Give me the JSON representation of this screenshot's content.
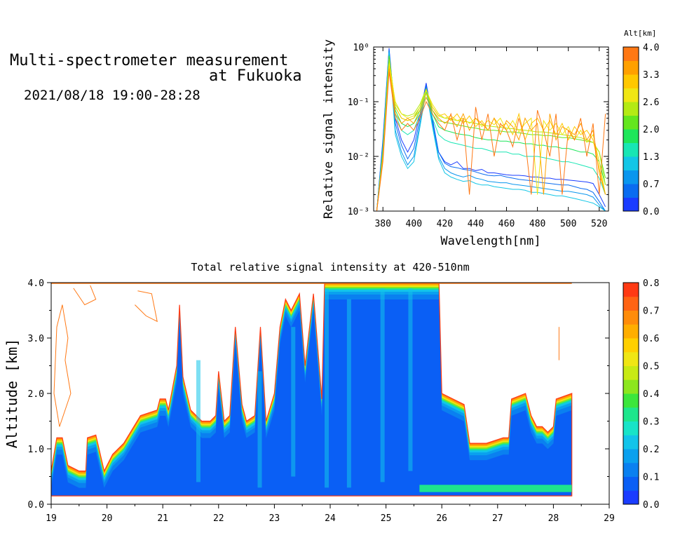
{
  "header": {
    "title_line1": "Multi-spectrometer measurement",
    "title_line2": "at Fukuoka",
    "datetime": "2021/08/18 19:00-28:28"
  },
  "chart_data": [
    {
      "type": "line",
      "title": "",
      "xlabel": "Wavelength[nm]",
      "ylabel": "Relative signal intensity",
      "yscale": "log",
      "xlim": [
        374,
        526
      ],
      "ylim": [
        0.001,
        1
      ],
      "xticks": [
        "380",
        "400",
        "420",
        "440",
        "460",
        "480",
        "500",
        "520"
      ],
      "yticks": [
        "10⁻³",
        "10⁻²",
        "10⁻¹",
        "10⁰"
      ],
      "colorbar": {
        "label": "Alt[km]",
        "ticks": [
          "0.0",
          "0.7",
          "1.3",
          "2.0",
          "2.6",
          "3.3",
          "4.0"
        ],
        "colors": [
          "#1a3cff",
          "#0a6cf0",
          "#0a96ee",
          "#12c6e6",
          "#18e6b4",
          "#1ee65a",
          "#64e61e",
          "#b4ea14",
          "#f0e614",
          "#ffc800",
          "#ffa000",
          "#ff7814"
        ]
      },
      "x": [
        376,
        380,
        384,
        388,
        392,
        396,
        400,
        404,
        408,
        412,
        416,
        420,
        424,
        428,
        432,
        436,
        440,
        444,
        448,
        452,
        456,
        460,
        464,
        468,
        472,
        476,
        480,
        484,
        488,
        492,
        496,
        500,
        504,
        508,
        512,
        516,
        520,
        524
      ],
      "series": [
        {
          "color": "#1a3cff",
          "values": [
            0.001,
            0.02,
            0.95,
            0.05,
            0.02,
            0.012,
            0.02,
            0.06,
            0.22,
            0.05,
            0.012,
            0.008,
            0.007,
            0.008,
            0.006,
            0.006,
            0.0055,
            0.0058,
            0.005,
            0.005,
            0.0048,
            0.0046,
            0.0045,
            0.0045,
            0.0044,
            0.0042,
            0.0042,
            0.004,
            0.004,
            0.0038,
            0.0038,
            0.0037,
            0.0036,
            0.0035,
            0.0034,
            0.0032,
            0.002,
            0.0012
          ]
        },
        {
          "color": "#0a6cf0",
          "values": [
            0.001,
            0.018,
            0.9,
            0.04,
            0.016,
            0.009,
            0.014,
            0.05,
            0.2,
            0.045,
            0.012,
            0.0075,
            0.0065,
            0.0062,
            0.0058,
            0.0056,
            0.0052,
            0.0048,
            0.0045,
            0.0044,
            0.0045,
            0.0042,
            0.004,
            0.0038,
            0.0037,
            0.0036,
            0.0034,
            0.0033,
            0.0032,
            0.0031,
            0.003,
            0.003,
            0.0028,
            0.0026,
            0.0025,
            0.0022,
            0.0015,
            0.001
          ]
        },
        {
          "color": "#0a96ee",
          "values": [
            0.001,
            0.015,
            0.85,
            0.03,
            0.012,
            0.007,
            0.01,
            0.04,
            0.18,
            0.04,
            0.01,
            0.006,
            0.005,
            0.0045,
            0.0042,
            0.0045,
            0.004,
            0.0038,
            0.0035,
            0.0034,
            0.0033,
            0.0033,
            0.0031,
            0.003,
            0.0029,
            0.0028,
            0.0027,
            0.0026,
            0.0025,
            0.0024,
            0.0023,
            0.0023,
            0.0022,
            0.0021,
            0.002,
            0.0018,
            0.0013,
            0.001
          ]
        },
        {
          "color": "#12c6e6",
          "values": [
            0.001,
            0.014,
            0.8,
            0.025,
            0.01,
            0.006,
            0.008,
            0.035,
            0.16,
            0.035,
            0.009,
            0.005,
            0.0042,
            0.0038,
            0.0035,
            0.0036,
            0.0032,
            0.003,
            0.003,
            0.0028,
            0.0027,
            0.0026,
            0.0025,
            0.0025,
            0.0024,
            0.0022,
            0.0022,
            0.0021,
            0.002,
            0.0019,
            0.0019,
            0.0018,
            0.0017,
            0.0016,
            0.0015,
            0.0014,
            0.0012,
            0.001
          ]
        },
        {
          "color": "#18e6b4",
          "values": [
            0.001,
            0.012,
            0.7,
            0.06,
            0.03,
            0.025,
            0.03,
            0.06,
            0.15,
            0.05,
            0.025,
            0.02,
            0.018,
            0.017,
            0.016,
            0.015,
            0.014,
            0.014,
            0.013,
            0.012,
            0.012,
            0.012,
            0.011,
            0.011,
            0.01,
            0.01,
            0.01,
            0.0095,
            0.009,
            0.0085,
            0.008,
            0.008,
            0.0075,
            0.007,
            0.0065,
            0.006,
            0.004,
            0.002
          ]
        },
        {
          "color": "#1ee65a",
          "values": [
            0.001,
            0.012,
            0.7,
            0.07,
            0.04,
            0.035,
            0.04,
            0.07,
            0.16,
            0.06,
            0.035,
            0.03,
            0.028,
            0.026,
            0.025,
            0.024,
            0.022,
            0.021,
            0.02,
            0.02,
            0.019,
            0.019,
            0.018,
            0.018,
            0.017,
            0.017,
            0.016,
            0.016,
            0.015,
            0.015,
            0.014,
            0.014,
            0.013,
            0.012,
            0.012,
            0.011,
            0.008,
            0.003
          ]
        },
        {
          "color": "#64e61e",
          "values": [
            0.001,
            0.012,
            0.68,
            0.08,
            0.05,
            0.045,
            0.05,
            0.08,
            0.17,
            0.07,
            0.045,
            0.042,
            0.04,
            0.038,
            0.036,
            0.034,
            0.033,
            0.031,
            0.03,
            0.03,
            0.029,
            0.028,
            0.028,
            0.027,
            0.026,
            0.025,
            0.025,
            0.024,
            0.024,
            0.023,
            0.022,
            0.022,
            0.021,
            0.02,
            0.019,
            0.018,
            0.012,
            0.004
          ]
        },
        {
          "color": "#b4ea14",
          "values": [
            0.001,
            0.011,
            0.6,
            0.09,
            0.06,
            0.055,
            0.06,
            0.09,
            0.17,
            0.08,
            0.055,
            0.05,
            0.048,
            0.045,
            0.044,
            0.042,
            0.04,
            0.038,
            0.036,
            0.035,
            0.034,
            0.033,
            0.032,
            0.031,
            0.03,
            0.029,
            0.028,
            0.028,
            0.027,
            0.026,
            0.025,
            0.024,
            0.023,
            0.022,
            0.02,
            0.018,
            0.012,
            0.003
          ]
        },
        {
          "color": "#f0e614",
          "values": [
            0.001,
            0.01,
            0.5,
            0.1,
            0.06,
            0.05,
            0.055,
            0.08,
            0.16,
            0.09,
            0.06,
            0.05,
            0.055,
            0.045,
            0.05,
            0.04,
            0.05,
            0.035,
            0.045,
            0.038,
            0.05,
            0.03,
            0.045,
            0.028,
            0.04,
            0.05,
            0.002,
            0.045,
            0.03,
            0.04,
            0.025,
            0.035,
            0.02,
            0.03,
            0.018,
            0.025,
            0.008,
            0.002
          ]
        },
        {
          "color": "#ffc800",
          "values": [
            0.001,
            0.01,
            0.45,
            0.08,
            0.05,
            0.045,
            0.05,
            0.07,
            0.14,
            0.08,
            0.055,
            0.06,
            0.045,
            0.06,
            0.04,
            0.055,
            0.035,
            0.045,
            0.03,
            0.05,
            0.035,
            0.04,
            0.025,
            0.06,
            0.02,
            0.04,
            0.05,
            0.03,
            0.045,
            0.025,
            0.04,
            0.02,
            0.035,
            0.025,
            0.03,
            0.02,
            0.006,
            0.002
          ]
        },
        {
          "color": "#ffa000",
          "values": [
            0.001,
            0.009,
            0.4,
            0.06,
            0.04,
            0.05,
            0.04,
            0.06,
            0.12,
            0.07,
            0.05,
            0.04,
            0.05,
            0.035,
            0.06,
            0.03,
            0.05,
            0.04,
            0.03,
            0.05,
            0.025,
            0.045,
            0.035,
            0.02,
            0.05,
            0.03,
            0.04,
            0.002,
            0.06,
            0.02,
            0.035,
            0.03,
            0.025,
            0.04,
            0.02,
            0.03,
            0.005,
            0.002
          ]
        },
        {
          "color": "#ff7814",
          "values": [
            0.001,
            0.008,
            0.35,
            0.05,
            0.03,
            0.04,
            0.03,
            0.05,
            0.1,
            0.06,
            0.04,
            0.03,
            0.06,
            0.02,
            0.05,
            0.002,
            0.08,
            0.02,
            0.06,
            0.01,
            0.04,
            0.03,
            0.015,
            0.05,
            0.02,
            0.002,
            0.07,
            0.03,
            0.01,
            0.06,
            0.002,
            0.03,
            0.02,
            0.05,
            0.01,
            0.04,
            0.002,
            0.06
          ]
        }
      ]
    },
    {
      "type": "heatmap",
      "title": "Total relative signal intensity at 420-510nm",
      "xlabel": "",
      "ylabel": "Altitude [km]",
      "xlim": [
        19,
        29
      ],
      "ylim": [
        0,
        4
      ],
      "xticks": [
        "19",
        "20",
        "21",
        "22",
        "23",
        "24",
        "25",
        "26",
        "27",
        "28",
        "29"
      ],
      "yticks": [
        "0.0",
        "1.0",
        "2.0",
        "3.0",
        "4.0"
      ],
      "data_range": [
        19,
        28.33
      ],
      "colorbar": {
        "label": "",
        "ticks": [
          "0.0",
          "0.1",
          "0.2",
          "0.3",
          "0.4",
          "0.5",
          "0.6",
          "0.7",
          "0.8"
        ],
        "colors": [
          "#1a3cff",
          "#0a5ff5",
          "#0a80f0",
          "#0aa0ee",
          "#12c4ea",
          "#18e4c8",
          "#1ee68c",
          "#3ce63c",
          "#8ce61e",
          "#c8ea14",
          "#f0e614",
          "#ffd000",
          "#ffae00",
          "#ff8c0a",
          "#ff6414",
          "#ff3a14"
        ]
      },
      "top_km": [
        [
          19.0,
          0.6
        ],
        [
          19.1,
          1.2
        ],
        [
          19.2,
          1.2
        ],
        [
          19.3,
          0.7
        ],
        [
          19.5,
          0.6
        ],
        [
          19.62,
          0.6
        ],
        [
          19.65,
          1.2
        ],
        [
          19.8,
          1.25
        ],
        [
          19.95,
          0.6
        ],
        [
          20.1,
          0.9
        ],
        [
          20.3,
          1.1
        ],
        [
          20.6,
          1.6
        ],
        [
          20.9,
          1.7
        ],
        [
          20.95,
          1.9
        ],
        [
          21.05,
          1.9
        ],
        [
          21.1,
          1.7
        ],
        [
          21.25,
          2.5
        ],
        [
          21.3,
          3.6
        ],
        [
          21.36,
          2.3
        ],
        [
          21.5,
          1.7
        ],
        [
          21.7,
          1.5
        ],
        [
          21.85,
          1.5
        ],
        [
          21.95,
          1.6
        ],
        [
          22.0,
          2.4
        ],
        [
          22.1,
          1.5
        ],
        [
          22.2,
          1.6
        ],
        [
          22.3,
          3.2
        ],
        [
          22.42,
          1.8
        ],
        [
          22.5,
          1.5
        ],
        [
          22.65,
          1.6
        ],
        [
          22.75,
          3.2
        ],
        [
          22.85,
          1.5
        ],
        [
          23.0,
          2.0
        ],
        [
          23.1,
          3.2
        ],
        [
          23.2,
          3.7
        ],
        [
          23.3,
          3.5
        ],
        [
          23.45,
          3.8
        ],
        [
          23.55,
          2.5
        ],
        [
          23.7,
          3.8
        ],
        [
          23.85,
          1.9
        ],
        [
          23.9,
          4.0
        ],
        [
          25.95,
          4.0
        ],
        [
          26.0,
          2.0
        ],
        [
          26.2,
          1.9
        ],
        [
          26.4,
          1.8
        ],
        [
          26.5,
          1.1
        ],
        [
          26.8,
          1.1
        ],
        [
          27.1,
          1.2
        ],
        [
          27.2,
          1.2
        ],
        [
          27.25,
          1.9
        ],
        [
          27.5,
          2.0
        ],
        [
          27.6,
          1.6
        ],
        [
          27.7,
          1.4
        ],
        [
          27.8,
          1.4
        ],
        [
          27.9,
          1.3
        ],
        [
          28.0,
          1.4
        ],
        [
          28.05,
          1.9
        ],
        [
          28.33,
          2.0
        ]
      ],
      "bottom_km": 0.15,
      "sparse_contours_km": [
        [
          [
            19.05,
            2.0
          ],
          [
            19.1,
            3.2
          ],
          [
            19.2,
            3.6
          ],
          [
            19.3,
            3.0
          ],
          [
            19.25,
            2.6
          ],
          [
            19.35,
            2.0
          ],
          [
            19.15,
            1.4
          ],
          [
            19.05,
            2.0
          ]
        ],
        [
          [
            19.4,
            3.9
          ],
          [
            19.6,
            3.6
          ],
          [
            19.8,
            3.7
          ],
          [
            19.7,
            3.95
          ]
        ],
        [
          [
            20.5,
            3.6
          ],
          [
            20.7,
            3.4
          ],
          [
            20.9,
            3.3
          ],
          [
            20.8,
            3.8
          ],
          [
            20.55,
            3.85
          ]
        ],
        [
          [
            28.1,
            3.2
          ],
          [
            28.1,
            2.6
          ]
        ]
      ]
    }
  ]
}
